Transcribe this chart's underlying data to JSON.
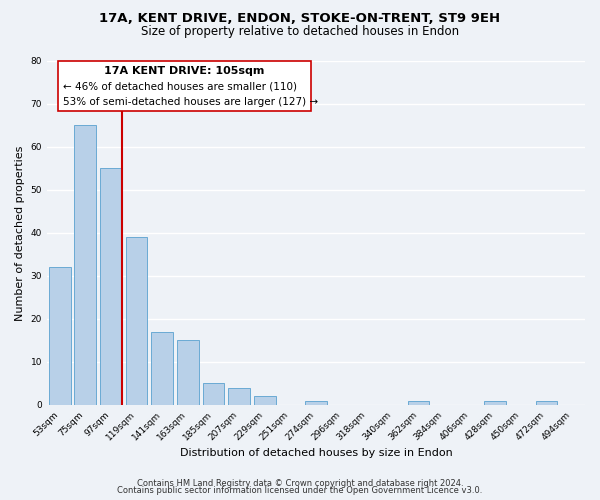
{
  "title": "17A, KENT DRIVE, ENDON, STOKE-ON-TRENT, ST9 9EH",
  "subtitle": "Size of property relative to detached houses in Endon",
  "xlabel": "Distribution of detached houses by size in Endon",
  "ylabel": "Number of detached properties",
  "bin_labels": [
    "53sqm",
    "75sqm",
    "97sqm",
    "119sqm",
    "141sqm",
    "163sqm",
    "185sqm",
    "207sqm",
    "229sqm",
    "251sqm",
    "274sqm",
    "296sqm",
    "318sqm",
    "340sqm",
    "362sqm",
    "384sqm",
    "406sqm",
    "428sqm",
    "450sqm",
    "472sqm",
    "494sqm"
  ],
  "bar_heights": [
    32,
    65,
    55,
    39,
    17,
    15,
    5,
    4,
    2,
    0,
    1,
    0,
    0,
    0,
    1,
    0,
    0,
    1,
    0,
    1,
    0
  ],
  "bar_color": "#b8d0e8",
  "bar_edge_color": "#6aaad4",
  "ylim": [
    0,
    80
  ],
  "yticks": [
    0,
    10,
    20,
    30,
    40,
    50,
    60,
    70,
    80
  ],
  "property_line_color": "#cc0000",
  "annotation_title": "17A KENT DRIVE: 105sqm",
  "annotation_line1": "← 46% of detached houses are smaller (110)",
  "annotation_line2": "53% of semi-detached houses are larger (127) →",
  "background_color": "#eef2f7",
  "grid_color": "#ffffff",
  "footer_line1": "Contains HM Land Registry data © Crown copyright and database right 2024.",
  "footer_line2": "Contains public sector information licensed under the Open Government Licence v3.0.",
  "title_fontsize": 9.5,
  "subtitle_fontsize": 8.5,
  "axis_label_fontsize": 8,
  "tick_fontsize": 6.5,
  "annotation_title_fontsize": 8,
  "annotation_text_fontsize": 7.5,
  "footer_fontsize": 6
}
